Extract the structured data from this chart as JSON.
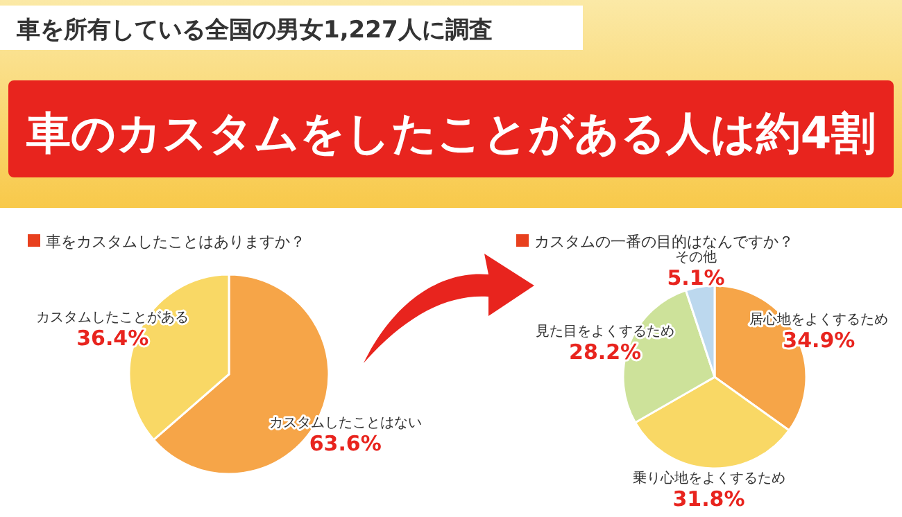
{
  "chart_data": [
    {
      "type": "other",
      "subtitle": "車を所有している全国の男女1,227人に調査",
      "title": "車のカスタムをしたことがある人は約4割"
    },
    {
      "type": "pie",
      "title": "車をカスタムしたことはありますか？",
      "categories": [
        "カスタムしたことはない",
        "カスタムしたことがある"
      ],
      "values": [
        63.6,
        36.4
      ],
      "colors": [
        "#f6a548",
        "#f9d865"
      ],
      "value_labels": [
        "63.6%",
        "36.4%"
      ]
    },
    {
      "type": "pie",
      "title": "カスタムの一番の目的はなんですか？",
      "categories": [
        "居心地をよくするため",
        "乗り心地をよくするため",
        "見た目をよくするため",
        "その他"
      ],
      "values": [
        34.9,
        31.8,
        28.2,
        5.1
      ],
      "colors": [
        "#f6a548",
        "#f9d865",
        "#cde29a",
        "#bcd8ee"
      ],
      "value_labels": [
        "34.9%",
        "31.8%",
        "28.2%",
        "5.1%"
      ]
    }
  ]
}
